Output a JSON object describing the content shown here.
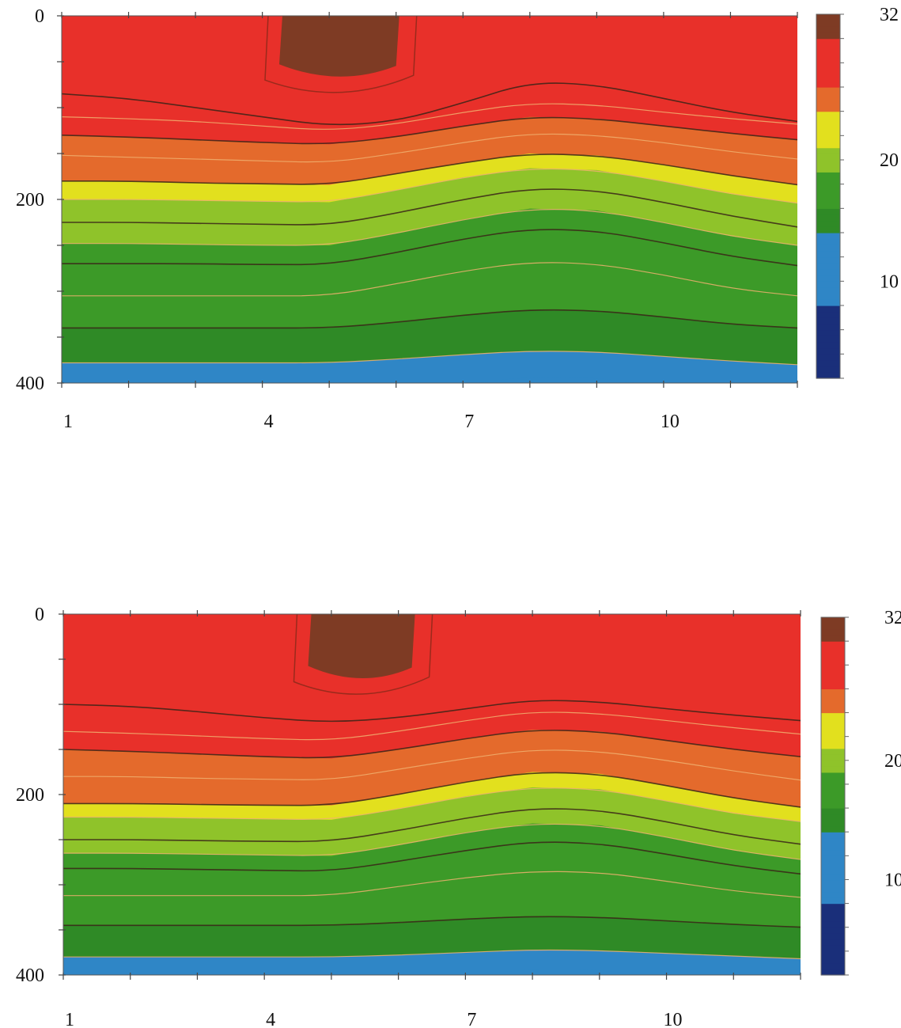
{
  "chart_data": [
    {
      "type": "heatmap",
      "title": "",
      "xlabel": "",
      "ylabel": "",
      "x_ticks": [
        "1",
        "4",
        "7",
        "10"
      ],
      "x_tick_values": [
        1,
        4,
        7,
        10
      ],
      "xlim": [
        1,
        12
      ],
      "y_ticks": [
        "0",
        "200",
        "400"
      ],
      "y_tick_values": [
        0,
        200,
        400
      ],
      "ylim": [
        0,
        400
      ],
      "y_inverted": true,
      "colorbar": {
        "ticks": [
          "32",
          "20",
          "10"
        ],
        "tick_values": [
          32,
          20,
          10
        ],
        "range": [
          2,
          32
        ]
      },
      "colors": {
        "hot": "#7e3b24",
        "red": "#e8302a",
        "orange": "#e46a2c",
        "yellow": "#e2e01e",
        "lightgreen": "#8fc32a",
        "green": "#3c9a28",
        "darkgreen": "#2f8a26",
        "blue": "#2f86c6",
        "navy": "#1a2f7a"
      },
      "isotherms": [
        {
          "value": 30,
          "depths": [
            null,
            null,
            null,
            null,
            null,
            null,
            null,
            null,
            null,
            null,
            null,
            null
          ]
        },
        {
          "value": 28,
          "depths": [
            85,
            90,
            100,
            110,
            120,
            115,
            95,
            72,
            75,
            90,
            105,
            115
          ]
        },
        {
          "value": 27,
          "depths": [
            110,
            112,
            115,
            120,
            125,
            118,
            105,
            95,
            97,
            105,
            112,
            118
          ]
        },
        {
          "value": 26,
          "depths": [
            130,
            132,
            135,
            138,
            140,
            132,
            120,
            110,
            112,
            120,
            128,
            135
          ]
        },
        {
          "value": 25,
          "depths": [
            152,
            154,
            156,
            158,
            160,
            150,
            138,
            128,
            130,
            138,
            148,
            156
          ]
        },
        {
          "value": 24,
          "depths": [
            180,
            180,
            182,
            183,
            184,
            172,
            160,
            150,
            152,
            162,
            174,
            184
          ]
        },
        {
          "value": 22,
          "depths": [
            200,
            200,
            201,
            202,
            203,
            190,
            176,
            166,
            168,
            180,
            194,
            204
          ]
        },
        {
          "value": 20,
          "depths": [
            225,
            225,
            226,
            227,
            228,
            215,
            200,
            188,
            190,
            203,
            218,
            230
          ]
        },
        {
          "value": 19,
          "depths": [
            248,
            248,
            249,
            250,
            250,
            237,
            222,
            210,
            212,
            225,
            240,
            250
          ]
        },
        {
          "value": 18,
          "depths": [
            270,
            270,
            270,
            271,
            271,
            258,
            243,
            232,
            234,
            247,
            262,
            272
          ]
        },
        {
          "value": 17,
          "depths": [
            305,
            305,
            305,
            305,
            305,
            292,
            278,
            268,
            270,
            282,
            297,
            305
          ]
        },
        {
          "value": 16,
          "depths": [
            340,
            340,
            340,
            340,
            340,
            334,
            326,
            320,
            321,
            328,
            336,
            340
          ]
        },
        {
          "value": 15,
          "depths": [
            378,
            378,
            378,
            378,
            378,
            374,
            369,
            365,
            366,
            371,
            376,
            380
          ]
        }
      ],
      "hot_core": {
        "value": 30.5,
        "x_range": [
          4.3,
          6.0
        ],
        "depth_max": 70
      }
    },
    {
      "type": "heatmap",
      "title": "",
      "xlabel": "",
      "ylabel": "",
      "x_ticks": [
        "1",
        "4",
        "7",
        "10"
      ],
      "x_tick_values": [
        1,
        4,
        7,
        10
      ],
      "xlim": [
        1,
        12
      ],
      "y_ticks": [
        "0",
        "200",
        "400"
      ],
      "y_tick_values": [
        0,
        200,
        400
      ],
      "ylim": [
        0,
        400
      ],
      "y_inverted": true,
      "colorbar": {
        "ticks": [
          "32",
          "20",
          "10"
        ],
        "tick_values": [
          32,
          20,
          10
        ],
        "range": [
          2,
          32
        ]
      },
      "colors": {
        "hot": "#7e3b24",
        "red": "#e8302a",
        "orange": "#e46a2c",
        "yellow": "#e2e01e",
        "lightgreen": "#8fc32a",
        "green": "#3c9a28",
        "darkgreen": "#2f8a26",
        "blue": "#2f86c6",
        "navy": "#1a2f7a"
      },
      "isotherms": [
        {
          "value": 28,
          "depths": [
            100,
            102,
            108,
            115,
            120,
            115,
            105,
            95,
            97,
            105,
            112,
            118
          ]
        },
        {
          "value": 27,
          "depths": [
            130,
            132,
            135,
            138,
            140,
            130,
            118,
            108,
            110,
            118,
            126,
            133
          ]
        },
        {
          "value": 26,
          "depths": [
            150,
            152,
            155,
            158,
            160,
            150,
            138,
            128,
            130,
            140,
            150,
            158
          ]
        },
        {
          "value": 25,
          "depths": [
            180,
            180,
            182,
            183,
            184,
            172,
            160,
            150,
            152,
            162,
            174,
            184
          ]
        },
        {
          "value": 24,
          "depths": [
            210,
            210,
            211,
            212,
            212,
            200,
            186,
            175,
            177,
            190,
            204,
            214
          ]
        },
        {
          "value": 22,
          "depths": [
            225,
            225,
            226,
            227,
            228,
            216,
            202,
            192,
            194,
            207,
            221,
            230
          ]
        },
        {
          "value": 20,
          "depths": [
            250,
            250,
            251,
            252,
            252,
            240,
            226,
            215,
            217,
            230,
            245,
            255
          ]
        },
        {
          "value": 19,
          "depths": [
            265,
            265,
            266,
            267,
            268,
            256,
            242,
            232,
            234,
            247,
            262,
            272
          ]
        },
        {
          "value": 18,
          "depths": [
            282,
            282,
            283,
            284,
            285,
            274,
            262,
            252,
            254,
            266,
            279,
            288
          ]
        },
        {
          "value": 17,
          "depths": [
            312,
            312,
            312,
            312,
            312,
            302,
            292,
            285,
            286,
            296,
            307,
            314
          ]
        },
        {
          "value": 16,
          "depths": [
            345,
            345,
            345,
            345,
            345,
            342,
            338,
            335,
            336,
            340,
            344,
            347
          ]
        },
        {
          "value": 15,
          "depths": [
            380,
            380,
            380,
            380,
            380,
            378,
            375,
            372,
            373,
            376,
            379,
            382
          ]
        }
      ],
      "hot_core": {
        "value": 30.5,
        "x_range": [
          4.7,
          6.2
        ],
        "depth_max": 75
      }
    }
  ]
}
